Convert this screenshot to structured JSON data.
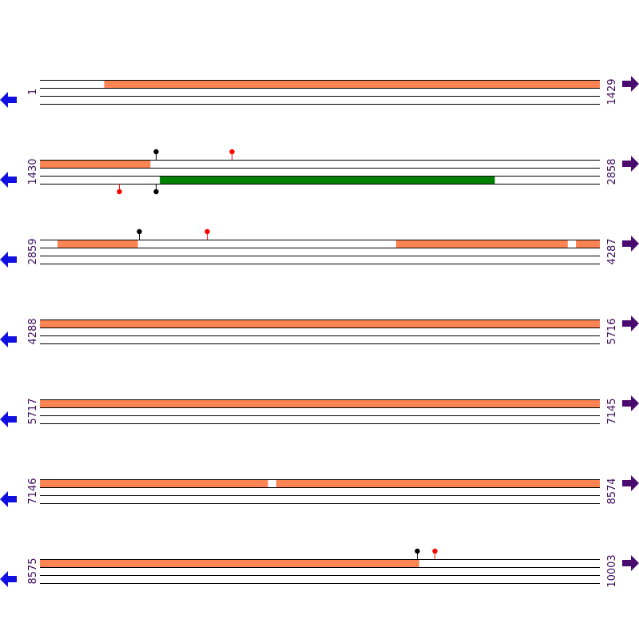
{
  "colors": {
    "feature": "#ff8454",
    "orf_green": "#008000",
    "line": "#000000",
    "label": "#3d0b5e",
    "arrow_left": "#1010e0",
    "arrow_right": "#4a0a6e",
    "marker_black": "#000000",
    "marker_red": "#ff0000"
  },
  "icons": {
    "left": "arrow-left-icon",
    "right": "arrow-right-icon"
  },
  "row_length": 1429,
  "rows": [
    {
      "start": 1,
      "end": 1429,
      "start_label": "1",
      "end_label": "1429",
      "features": [
        {
          "lane": 0,
          "from": 165,
          "to": 1429,
          "color": "feature"
        }
      ],
      "markers": []
    },
    {
      "start": 1430,
      "end": 2858,
      "start_label": "1430",
      "end_label": "2858",
      "features": [
        {
          "lane": 0,
          "from": 1430,
          "to": 1711,
          "color": "feature"
        },
        {
          "lane": 2,
          "from": 1736,
          "to": 2590,
          "color": "orf_green"
        }
      ],
      "markers": [
        {
          "lane": 0,
          "pos": 1725,
          "color": "marker_black",
          "dir": "up"
        },
        {
          "lane": 0,
          "pos": 1919,
          "color": "marker_red",
          "dir": "up"
        },
        {
          "lane": 2,
          "pos": 1632,
          "color": "marker_red",
          "dir": "down"
        },
        {
          "lane": 2,
          "pos": 1725,
          "color": "marker_black",
          "dir": "down"
        }
      ]
    },
    {
      "start": 2859,
      "end": 4287,
      "start_label": "2859",
      "end_label": "4287",
      "features": [
        {
          "lane": 0,
          "from": 2904,
          "to": 3108,
          "color": "feature"
        },
        {
          "lane": 0,
          "from": 3768,
          "to": 4205,
          "color": "feature"
        },
        {
          "lane": 0,
          "from": 4227,
          "to": 4287,
          "color": "feature"
        }
      ],
      "markers": [
        {
          "lane": 0,
          "pos": 3112,
          "color": "marker_black",
          "dir": "up"
        },
        {
          "lane": 0,
          "pos": 3285,
          "color": "marker_red",
          "dir": "up"
        }
      ]
    },
    {
      "start": 4288,
      "end": 5716,
      "start_label": "4288",
      "end_label": "5716",
      "features": [
        {
          "lane": 0,
          "from": 4288,
          "to": 5716,
          "color": "feature"
        }
      ],
      "markers": []
    },
    {
      "start": 5717,
      "end": 7145,
      "start_label": "5717",
      "end_label": "7145",
      "features": [
        {
          "lane": 0,
          "from": 5717,
          "to": 7145,
          "color": "feature"
        }
      ],
      "markers": []
    },
    {
      "start": 7146,
      "end": 8574,
      "start_label": "7146",
      "end_label": "8574",
      "features": [
        {
          "lane": 0,
          "from": 7146,
          "to": 7727,
          "color": "feature"
        },
        {
          "lane": 0,
          "from": 7749,
          "to": 8574,
          "color": "feature"
        }
      ],
      "markers": []
    },
    {
      "start": 8575,
      "end": 10003,
      "start_label": "8575",
      "end_label": "10003",
      "features": [
        {
          "lane": 0,
          "from": 8575,
          "to": 9542,
          "color": "feature"
        }
      ],
      "markers": [
        {
          "lane": 0,
          "pos": 9538,
          "color": "marker_black",
          "dir": "up"
        },
        {
          "lane": 0,
          "pos": 9582,
          "color": "marker_red",
          "dir": "up"
        }
      ]
    }
  ]
}
